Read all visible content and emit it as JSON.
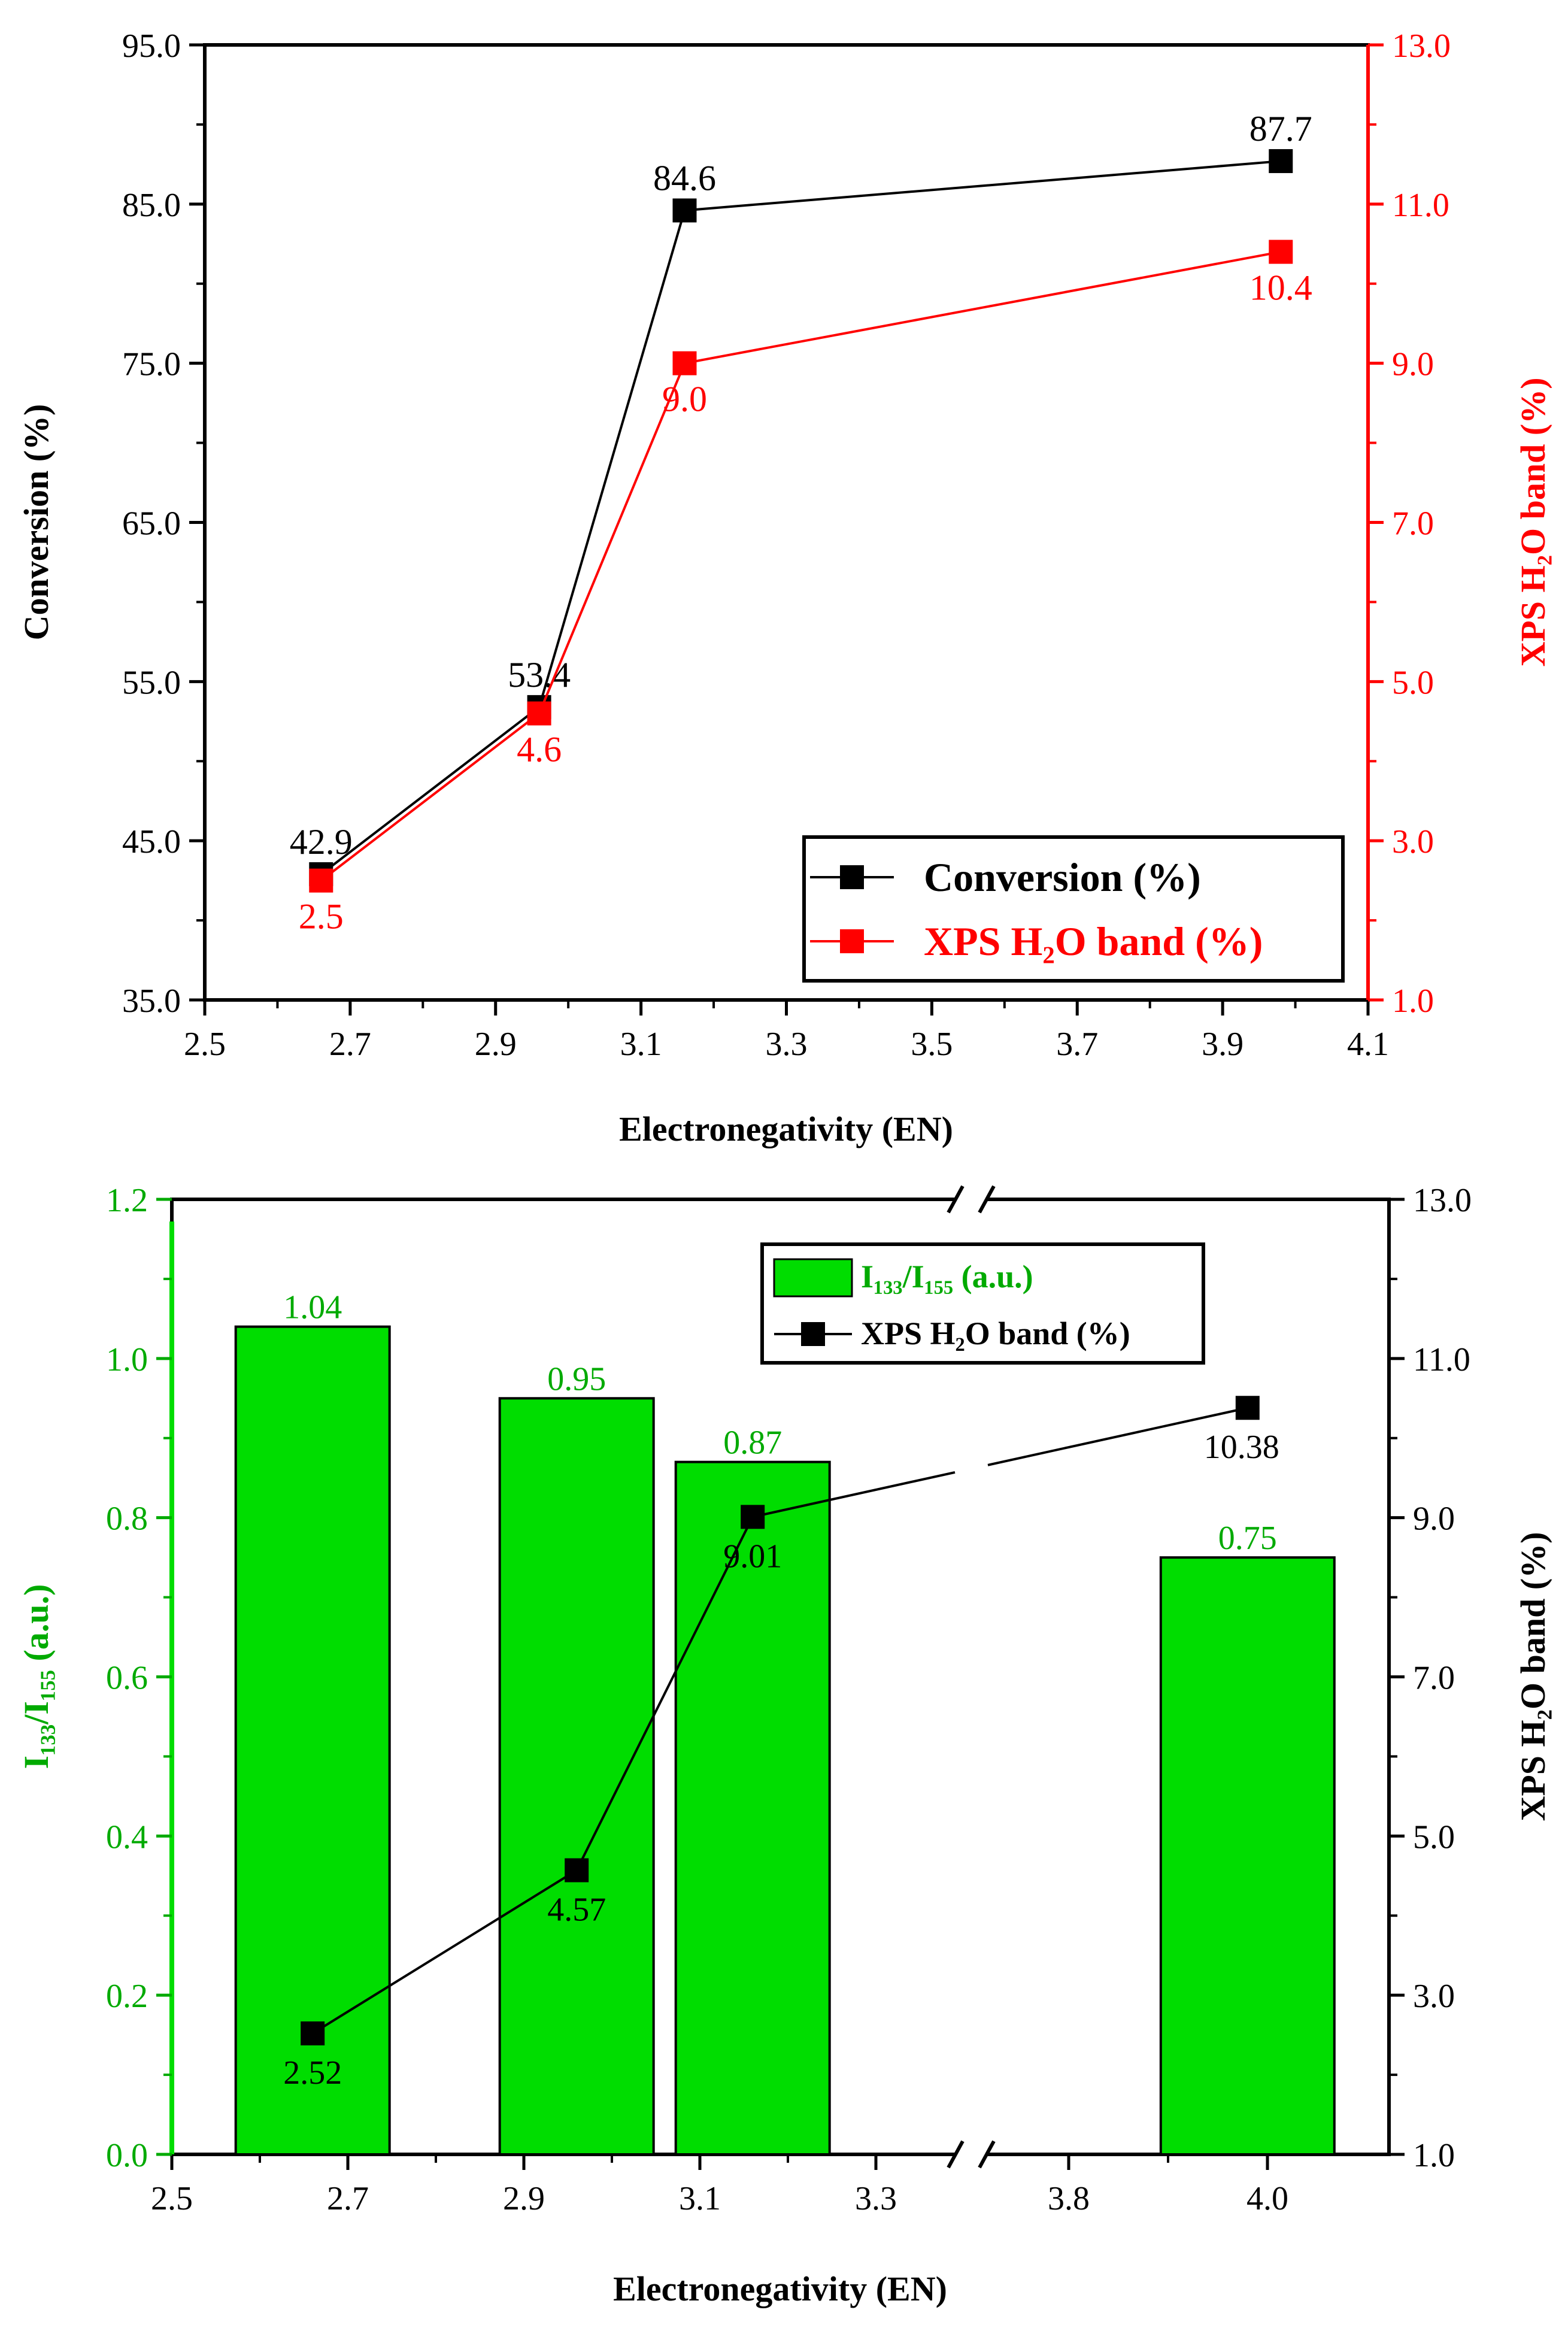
{
  "chart_data": [
    {
      "type": "line",
      "title": "",
      "xlabel": "Electronegativity (EN)",
      "ylabel": "Conversion (%)",
      "ylabel_right": "XPS H₂O band (%)",
      "xlim": [
        2.5,
        4.1
      ],
      "ylim": [
        35.0,
        95.0
      ],
      "ylim_right": [
        1.0,
        13.0
      ],
      "x_ticks": [
        "2.5",
        "2.7",
        "2.9",
        "3.1",
        "3.3",
        "3.5",
        "3.7",
        "3.9",
        "4.1"
      ],
      "y_ticks": [
        "35.0",
        "45.0",
        "55.0",
        "65.0",
        "75.0",
        "85.0",
        "95.0"
      ],
      "y_right_ticks": [
        "1.0",
        "3.0",
        "5.0",
        "7.0",
        "9.0",
        "11.0",
        "13.0"
      ],
      "grid": false,
      "legend_position": "bottom-right",
      "series": [
        {
          "name": "Conversion (%)",
          "axis": "left",
          "color": "#000000",
          "x": [
            2.66,
            2.96,
            3.16,
            3.98
          ],
          "y": [
            42.9,
            53.4,
            84.6,
            87.7
          ],
          "labels": [
            "42.9",
            "53.4",
            "84.6",
            "87.7"
          ]
        },
        {
          "name": "XPS H₂O band (%)",
          "axis": "right",
          "color": "#ff0000",
          "x": [
            2.66,
            2.96,
            3.16,
            3.98
          ],
          "y": [
            2.5,
            4.6,
            9.0,
            10.4
          ],
          "labels": [
            "2.5",
            "4.6",
            "9.0",
            "10.4"
          ]
        }
      ]
    },
    {
      "type": "bar",
      "title": "",
      "xlabel": "Electronegativity (EN)",
      "ylabel": "I₁₃₃/I₁₅₅ (a.u.)",
      "ylabel_right": "XPS H₂O band (%)",
      "x_axis_break": "between 3.3 and 3.8",
      "x_ticks": [
        "2.5",
        "2.7",
        "2.9",
        "3.1",
        "3.3",
        "3.8",
        "4.0"
      ],
      "ylim": [
        0.0,
        1.2
      ],
      "ylim_right": [
        1.0,
        13.0
      ],
      "y_ticks": [
        "0.0",
        "0.2",
        "0.4",
        "0.6",
        "0.8",
        "1.0",
        "1.2"
      ],
      "y_right_ticks": [
        "1.0",
        "3.0",
        "5.0",
        "7.0",
        "9.0",
        "11.0",
        "13.0"
      ],
      "grid": false,
      "legend_position": "top-right",
      "series": [
        {
          "name": "I₁₃₃/I₁₅₅ (a.u.)",
          "axis": "left",
          "kind": "bar",
          "color": "#00dd00",
          "x": [
            2.66,
            2.96,
            3.16,
            3.98
          ],
          "values": [
            1.04,
            0.95,
            0.87,
            0.75
          ],
          "labels": [
            "1.04",
            "0.95",
            "0.87",
            "0.75"
          ]
        },
        {
          "name": "XPS H₂O band (%)",
          "axis": "right",
          "kind": "line",
          "color": "#000000",
          "x": [
            2.66,
            2.96,
            3.16,
            3.98
          ],
          "y": [
            2.52,
            4.57,
            9.01,
            10.38
          ],
          "labels": [
            "2.52",
            "4.57",
            "9.01",
            "10.38"
          ]
        }
      ]
    }
  ]
}
